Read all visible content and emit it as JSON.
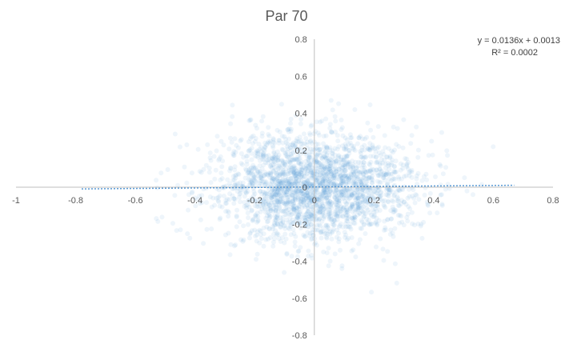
{
  "chart_data": {
    "type": "scatter",
    "title": "Par 70",
    "xlabel": "",
    "ylabel": "",
    "xlim": [
      -1,
      0.8
    ],
    "ylim": [
      -0.8,
      0.8
    ],
    "x_ticks": [
      -1,
      -0.8,
      -0.6,
      -0.4,
      -0.2,
      0,
      0.2,
      0.4,
      0.6,
      0.8
    ],
    "x_tick_labels": [
      "-1",
      "-0.8",
      "-0.6",
      "-0.4",
      "-0.2",
      "0",
      "0.2",
      "0.4",
      "0.6",
      "0.8"
    ],
    "y_ticks": [
      -0.8,
      -0.6,
      -0.4,
      -0.2,
      0,
      0.2,
      0.4,
      0.6,
      0.8
    ],
    "y_tick_labels": [
      "-0.8",
      "-0.6",
      "-0.4",
      "-0.2",
      "0",
      "0.2",
      "0.4",
      "0.6",
      "0.8"
    ],
    "grid": false,
    "legend": "none",
    "marker_color": "#5b9bd5",
    "point_cloud": {
      "count": 2500,
      "x_center": 0.0,
      "y_center": 0.0,
      "x_std": 0.17,
      "y_std": 0.15,
      "x_range": [
        -0.8,
        0.68
      ],
      "y_range": [
        -0.7,
        0.72
      ]
    },
    "trendline": {
      "type": "linear",
      "slope": 0.0136,
      "intercept": 0.0013,
      "x_range": [
        -0.78,
        0.67
      ],
      "equation_label": "y = 0.0136x + 0.0013",
      "r2_label": "R² = 0.0002",
      "color": "#5b9bd5"
    }
  }
}
